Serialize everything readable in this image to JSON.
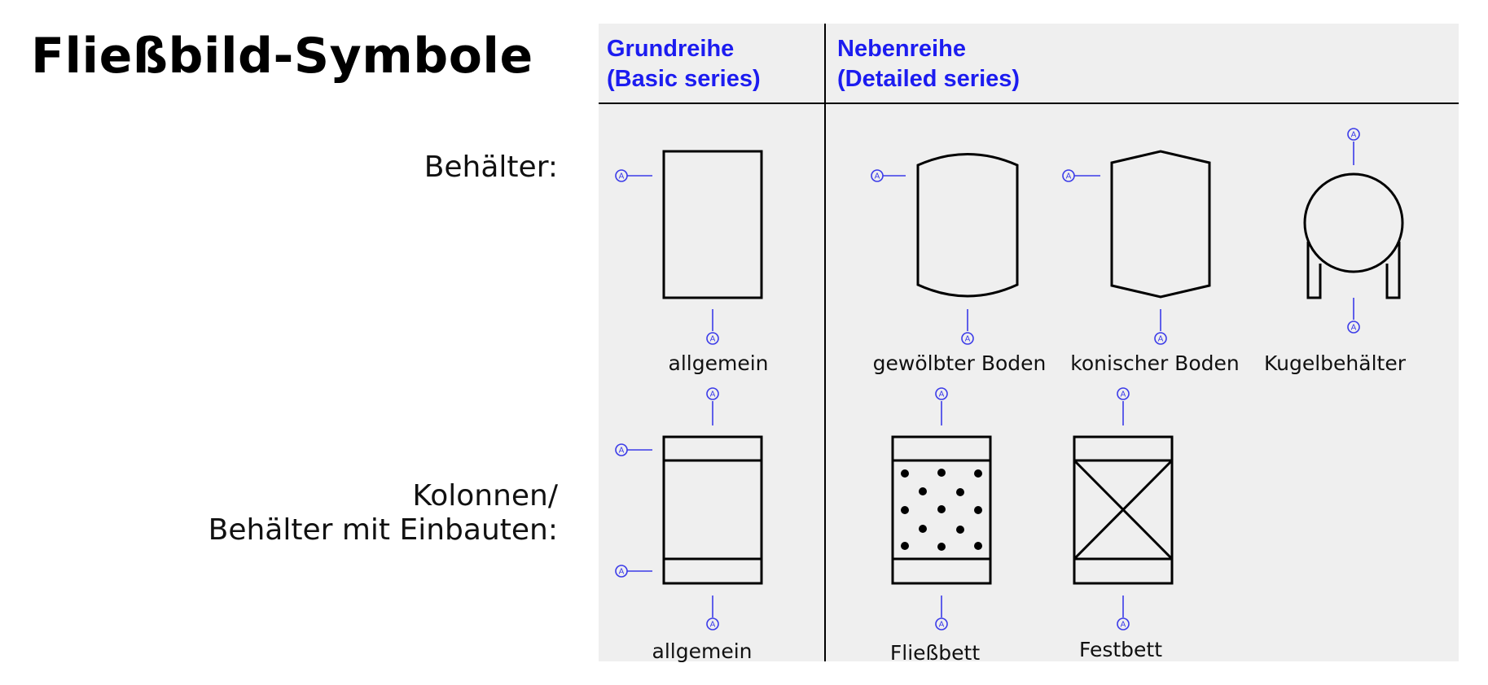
{
  "title": "Fließbild-Symbole",
  "row_labels": {
    "behaelter": "Behälter:",
    "kolonnen_line1": "Kolonnen/",
    "kolonnen_line2": "Behälter mit Einbauten:"
  },
  "headers": {
    "basic_line1": "Grundreihe",
    "basic_line2": "(Basic series)",
    "detailed_line1": "Nebenreihe",
    "detailed_line2": "(Detailed series)"
  },
  "captions": {
    "vessel_general": "allgemein",
    "vessel_domed": "gewölbter Boden",
    "vessel_conical": "konischer Boden",
    "vessel_spherical": "Kugelbehälter",
    "column_general": "allgemein",
    "column_fluidized": "Fließbett",
    "column_fixed": "Festbett"
  },
  "connector_glyph": "A",
  "colors": {
    "header_text": "#1c1cf0",
    "connector": "#3b3be8",
    "panel_bg": "#efefef",
    "symbol_stroke": "#000000"
  }
}
